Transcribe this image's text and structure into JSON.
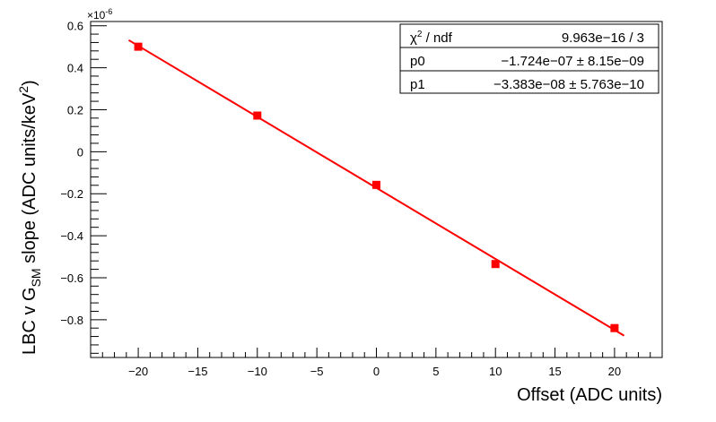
{
  "chart_data": {
    "type": "scatter",
    "x": [
      -20,
      -10,
      0,
      10,
      20
    ],
    "y": [
      5e-07,
      1.72e-07,
      -1.58e-07,
      -5.35e-07,
      -8.4e-07
    ],
    "fit_line": {
      "x_range": [
        -20.8,
        20.8
      ],
      "slope": -3.383e-08,
      "intercept": -1.724e-07
    },
    "xlim": [
      -24,
      24
    ],
    "ylim": [
      -9.8e-07,
      6.2e-07
    ],
    "xticks": [
      "-20",
      "-15",
      "-10",
      "-5",
      "0",
      "5",
      "10",
      "15",
      "20"
    ],
    "xtick_values": [
      -20,
      -15,
      -10,
      -5,
      0,
      5,
      10,
      15,
      20
    ],
    "yticks": [
      "0.6",
      "0.4",
      "0.2",
      "0",
      "-0.2",
      "-0.4",
      "-0.6",
      "-0.8"
    ],
    "ytick_values": [
      6e-07,
      4e-07,
      2e-07,
      0,
      -2e-07,
      -4e-07,
      -6e-07,
      -8e-07
    ],
    "y_exponent": "×10",
    "y_exponent_power": "-6",
    "xlabel": "Offset (ADC units)",
    "ylabel": {
      "prefix": "LBC v G",
      "sub": "SM",
      "mid": " slope (ADC units/keV",
      "sup": "2",
      "suffix": ")"
    },
    "grid": false,
    "marker_color": "#ff0000",
    "line_color": "#ff0000",
    "stats": {
      "placement": "top-right",
      "rows": [
        {
          "label": "χ",
          "label_sup": "2",
          "label_suffix": " / ndf",
          "value": "9.963e−16 / 3"
        },
        {
          "label": "p0",
          "value": "−1.724e−07 ± 8.15e−09"
        },
        {
          "label": "p1",
          "value": "−3.383e−08 ± 5.763e−10"
        }
      ]
    }
  }
}
